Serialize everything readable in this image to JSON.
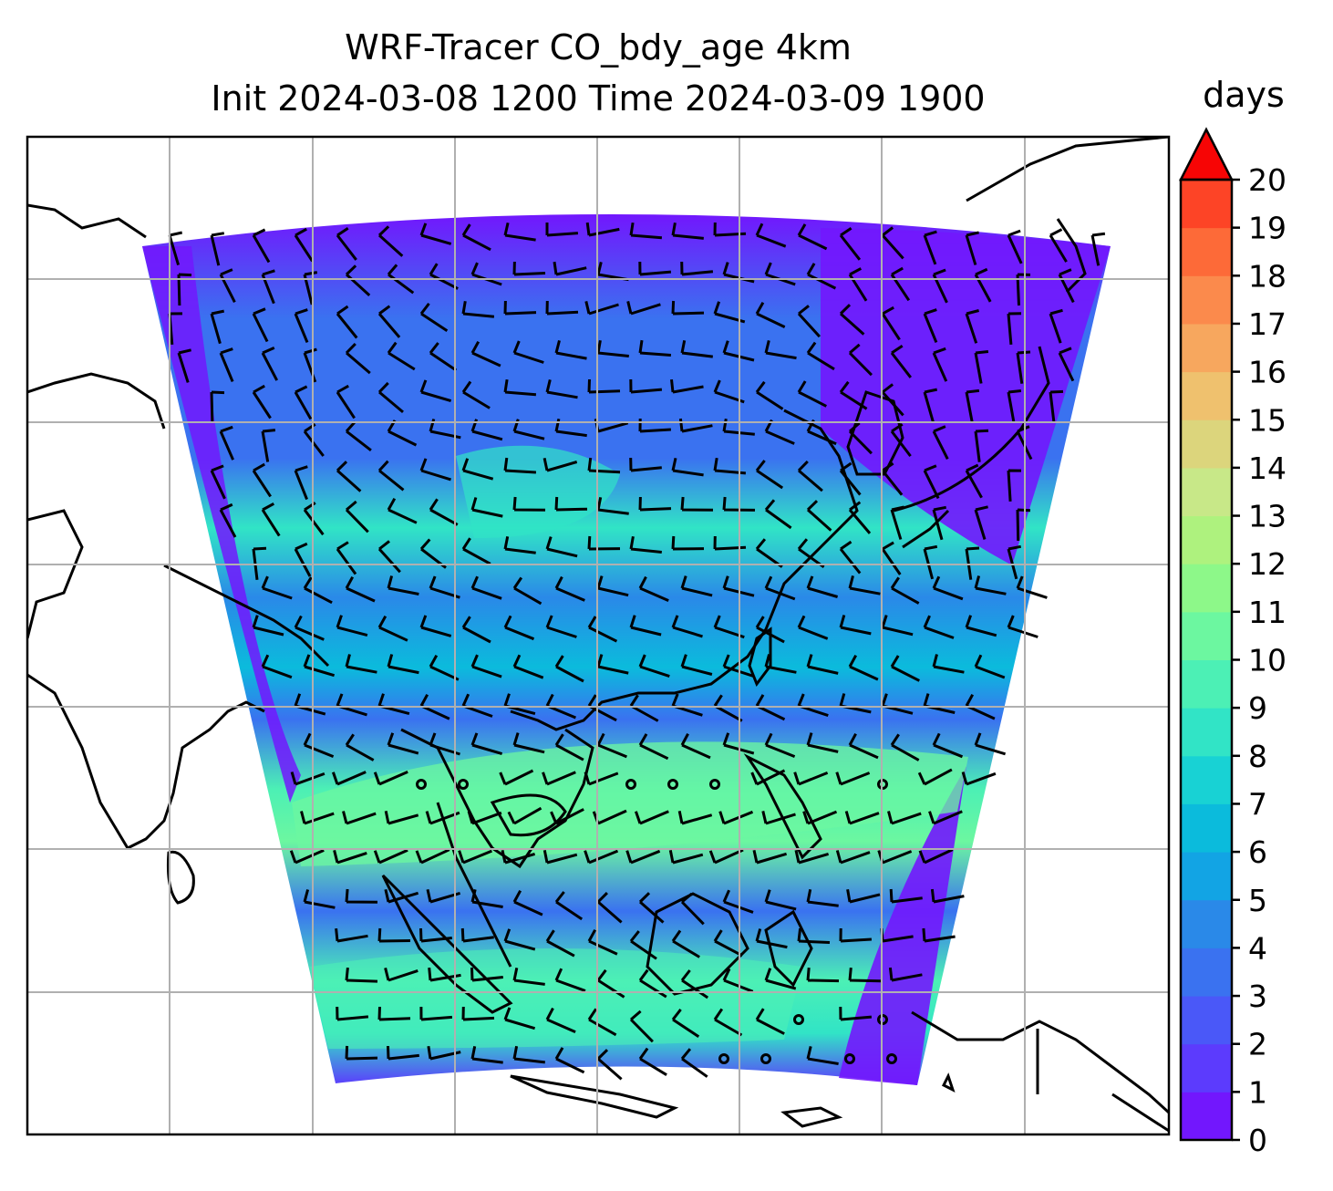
{
  "title": {
    "line1": "WRF-Tracer CO_bdy_age 4km",
    "line2": "Init 2024-03-08 1200 Time 2024-03-09 1900"
  },
  "colorbar": {
    "label": "days",
    "ticks": [
      "0",
      "1",
      "2",
      "3",
      "4",
      "5",
      "6",
      "7",
      "8",
      "9",
      "10",
      "11",
      "12",
      "13",
      "14",
      "15",
      "16",
      "17",
      "18",
      "19",
      "20"
    ],
    "extend": "max",
    "colors": [
      "#7217fd",
      "#5c3bfd",
      "#4a58f8",
      "#3a72f0",
      "#2a89e8",
      "#12a4e4",
      "#0bbbdc",
      "#18d2d4",
      "#31e4c6",
      "#4cf0b5",
      "#6cf7a0",
      "#8df889",
      "#aef27e",
      "#c8e888",
      "#dcd57c",
      "#efc16e",
      "#f7a75e",
      "#fb8a4c",
      "#fd6a38",
      "#fd4426",
      "#fc1e12",
      "#f70505"
    ]
  },
  "map": {
    "field": "CO_bdy_age",
    "units": "days",
    "gridlines": true,
    "projection": "Lambert conformal",
    "coastlines": true,
    "wind_barbs": true,
    "domain_colors": {
      "low": "#7217fd",
      "mid": "#3a72f0",
      "high": "#6cf7a0"
    }
  }
}
